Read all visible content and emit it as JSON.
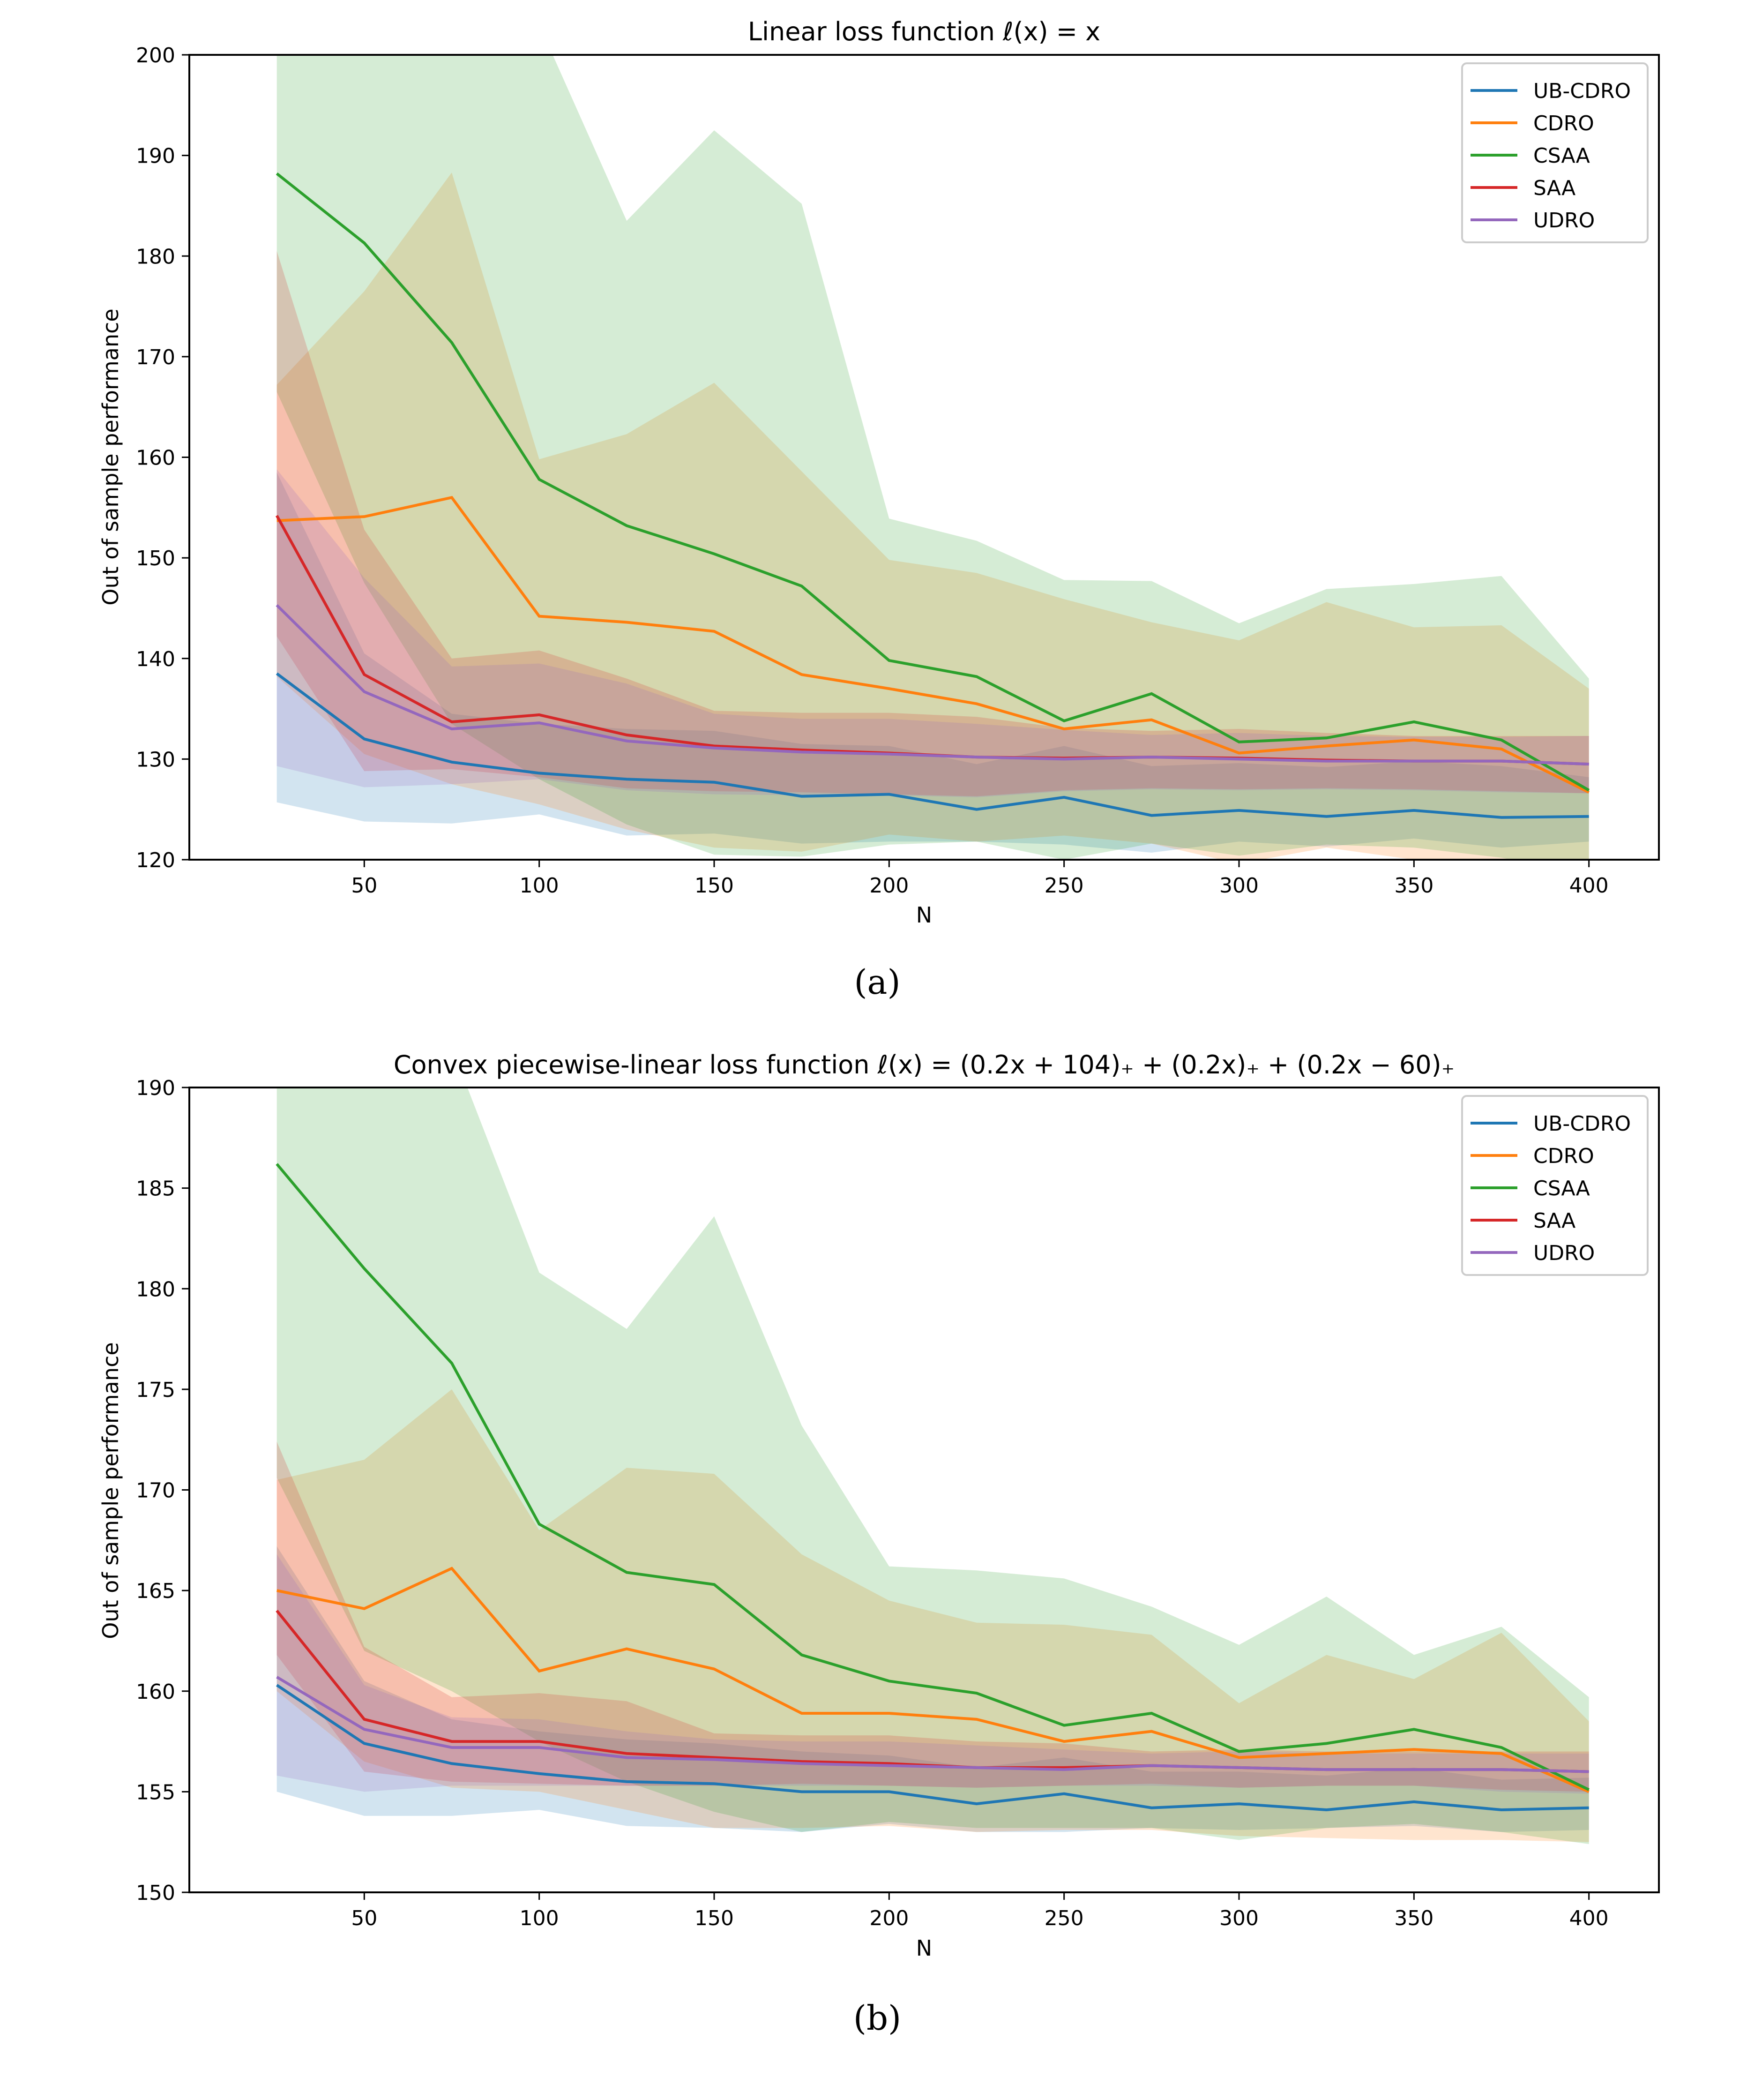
{
  "figure": {
    "captions": [
      "(a)",
      "(b)"
    ]
  },
  "colors": {
    "UB-CDRO": "#1f77b4",
    "CDRO": "#ff7f0e",
    "CSAA": "#2ca02c",
    "SAA": "#d62728",
    "UDRO": "#9467bd"
  },
  "chart_data": [
    {
      "type": "line",
      "title": "Linear loss function ℓ(x) = x",
      "xlabel": "N",
      "ylabel": "Out of sample performance",
      "xlim": [
        0,
        420
      ],
      "ylim": [
        120,
        200
      ],
      "xticks": [
        50,
        100,
        150,
        200,
        250,
        300,
        350,
        400
      ],
      "yticks": [
        120,
        130,
        140,
        150,
        160,
        170,
        180,
        190,
        200
      ],
      "grid": false,
      "legend_position": "top-right",
      "x": [
        25,
        50,
        75,
        100,
        125,
        150,
        175,
        200,
        225,
        250,
        275,
        300,
        325,
        350,
        375,
        400
      ],
      "series": [
        {
          "name": "UB-CDRO",
          "values": [
            138.5,
            132.0,
            129.7,
            128.6,
            128.0,
            127.7,
            126.3,
            126.5,
            125.0,
            126.2,
            124.4,
            124.9,
            124.3,
            124.9,
            124.2,
            124.3
          ],
          "band_upper": [
            158.5,
            140.5,
            134.5,
            133.5,
            133.0,
            132.8,
            131.5,
            131.3,
            129.5,
            131.3,
            129.3,
            129.6,
            129.2,
            129.8,
            129.3,
            128.2
          ],
          "band_lower": [
            125.7,
            123.8,
            123.6,
            124.5,
            122.4,
            122.6,
            121.6,
            121.8,
            121.8,
            121.5,
            120.7,
            121.8,
            121.3,
            122.1,
            121.2,
            121.8
          ]
        },
        {
          "name": "CDRO",
          "values": [
            153.7,
            154.1,
            156.0,
            144.2,
            143.6,
            142.7,
            138.4,
            137.0,
            135.5,
            133.0,
            133.9,
            130.6,
            131.3,
            131.9,
            131.0,
            126.7
          ],
          "band_upper": [
            167.2,
            176.5,
            188.3,
            159.8,
            162.3,
            167.4,
            158.6,
            149.8,
            148.5,
            145.9,
            143.6,
            141.8,
            145.6,
            143.1,
            143.3,
            137.0
          ],
          "band_lower": [
            138.2,
            130.5,
            127.5,
            125.5,
            123.0,
            121.2,
            120.8,
            122.5,
            121.8,
            122.4,
            121.6,
            119.6,
            121.2,
            120.0,
            119.5,
            119.0
          ]
        },
        {
          "name": "CSAA",
          "values": [
            188.2,
            181.3,
            171.4,
            157.8,
            153.2,
            150.4,
            147.2,
            139.8,
            138.2,
            133.8,
            136.5,
            131.7,
            132.1,
            133.7,
            131.9,
            126.9
          ],
          "band_upper": [
            215.0,
            213.0,
            215.0,
            203.0,
            183.5,
            192.5,
            185.2,
            153.9,
            151.7,
            147.8,
            147.7,
            143.5,
            146.9,
            147.4,
            148.2,
            138.0
          ],
          "band_lower": [
            166.5,
            147.5,
            133.5,
            128.0,
            123.5,
            120.5,
            120.3,
            121.5,
            121.8,
            120.0,
            121.6,
            120.4,
            121.5,
            121.2,
            120.2,
            118.5
          ]
        },
        {
          "name": "SAA",
          "values": [
            154.2,
            138.4,
            133.7,
            134.4,
            132.4,
            131.3,
            130.9,
            130.6,
            130.2,
            130.1,
            130.2,
            130.1,
            129.9,
            129.8,
            129.8,
            129.5
          ],
          "band_upper": [
            180.5,
            152.8,
            140.0,
            140.8,
            138.0,
            134.8,
            134.6,
            134.6,
            134.2,
            133.1,
            132.8,
            133.0,
            132.6,
            132.3,
            132.3,
            132.3
          ],
          "band_lower": [
            142.2,
            128.8,
            129.0,
            128.2,
            127.1,
            126.8,
            126.7,
            126.5,
            126.3,
            126.9,
            127.1,
            127.0,
            127.1,
            127.0,
            126.8,
            126.6
          ]
        },
        {
          "name": "UDRO",
          "values": [
            145.3,
            136.7,
            133.0,
            133.6,
            131.8,
            131.1,
            130.7,
            130.5,
            130.2,
            130.0,
            130.2,
            130.0,
            129.8,
            129.8,
            129.8,
            129.5
          ],
          "band_upper": [
            158.8,
            148.0,
            139.2,
            139.5,
            137.5,
            134.5,
            134.0,
            134.0,
            133.5,
            132.9,
            132.4,
            132.6,
            132.3,
            132.2,
            132.2,
            132.3
          ],
          "band_lower": [
            129.3,
            127.2,
            127.5,
            128.0,
            126.9,
            126.5,
            126.4,
            126.4,
            126.2,
            126.8,
            127.0,
            126.9,
            127.0,
            126.9,
            126.7,
            126.6
          ]
        }
      ]
    },
    {
      "type": "line",
      "title": "Convex piecewise-linear loss function ℓ(x) = (0.2x + 104)₊ + (0.2x)₊ + (0.2x − 60)₊",
      "xlabel": "N",
      "ylabel": "Out of sample performance",
      "xlim": [
        0,
        420
      ],
      "ylim": [
        150,
        190
      ],
      "xticks": [
        50,
        100,
        150,
        200,
        250,
        300,
        350,
        400
      ],
      "yticks": [
        150,
        155,
        160,
        165,
        170,
        175,
        180,
        185,
        190
      ],
      "grid": false,
      "legend_position": "top-right",
      "x": [
        25,
        50,
        75,
        100,
        125,
        150,
        175,
        200,
        225,
        250,
        275,
        300,
        325,
        350,
        375,
        400
      ],
      "series": [
        {
          "name": "UB-CDRO",
          "values": [
            160.3,
            157.4,
            156.4,
            155.9,
            155.5,
            155.4,
            155.0,
            155.0,
            154.4,
            154.9,
            154.2,
            154.4,
            154.1,
            154.5,
            154.1,
            154.2
          ],
          "band_upper": [
            167.2,
            160.5,
            158.6,
            158.0,
            157.6,
            157.4,
            157.0,
            156.8,
            156.2,
            156.7,
            156.0,
            156.0,
            155.8,
            156.2,
            155.6,
            155.7
          ],
          "band_lower": [
            155.0,
            153.8,
            153.8,
            154.1,
            153.3,
            153.2,
            153.0,
            153.4,
            153.0,
            153.0,
            153.2,
            153.1,
            153.2,
            153.3,
            153.0,
            153.1
          ]
        },
        {
          "name": "CDRO",
          "values": [
            165.0,
            164.1,
            166.1,
            161.0,
            162.1,
            161.1,
            158.9,
            158.9,
            158.6,
            157.5,
            158.0,
            156.7,
            156.9,
            157.1,
            156.9,
            155.0
          ],
          "band_upper": [
            170.5,
            171.5,
            175.0,
            168.0,
            171.1,
            170.8,
            166.8,
            164.5,
            163.4,
            163.3,
            162.8,
            159.4,
            161.8,
            160.6,
            162.9,
            158.5
          ],
          "band_lower": [
            160.0,
            156.5,
            155.2,
            155.0,
            154.1,
            153.2,
            153.2,
            153.3,
            153.0,
            153.1,
            153.1,
            152.8,
            152.7,
            152.6,
            152.6,
            152.5
          ]
        },
        {
          "name": "CSAA",
          "values": [
            186.2,
            181.0,
            176.3,
            168.3,
            165.9,
            165.3,
            161.8,
            160.5,
            159.9,
            158.3,
            158.9,
            157.0,
            157.4,
            158.1,
            157.2,
            155.1
          ],
          "band_upper": [
            200.0,
            200.0,
            192.0,
            180.8,
            178.0,
            183.6,
            173.2,
            166.2,
            166.0,
            165.6,
            164.2,
            162.3,
            164.7,
            161.8,
            163.2,
            159.7
          ],
          "band_lower": [
            170.6,
            162.0,
            160.0,
            157.5,
            155.5,
            154.0,
            153.0,
            153.5,
            153.2,
            153.2,
            153.2,
            152.6,
            153.2,
            153.4,
            153.0,
            152.4
          ]
        },
        {
          "name": "SAA",
          "values": [
            164.0,
            158.6,
            157.5,
            157.5,
            156.9,
            156.7,
            156.5,
            156.4,
            156.2,
            156.2,
            156.3,
            156.2,
            156.1,
            156.1,
            156.1,
            156.0
          ],
          "band_upper": [
            172.4,
            162.2,
            159.7,
            159.9,
            159.5,
            157.9,
            157.8,
            157.8,
            157.5,
            157.4,
            157.0,
            157.1,
            157.0,
            157.0,
            157.0,
            157.0
          ],
          "band_lower": [
            161.8,
            156.0,
            155.5,
            155.4,
            155.3,
            155.3,
            155.4,
            155.3,
            155.2,
            155.3,
            155.4,
            155.2,
            155.3,
            155.3,
            155.1,
            155.0
          ]
        },
        {
          "name": "UDRO",
          "values": [
            160.7,
            158.1,
            157.2,
            157.2,
            156.7,
            156.6,
            156.4,
            156.3,
            156.2,
            156.1,
            156.3,
            156.2,
            156.1,
            156.1,
            156.1,
            156.0
          ],
          "band_upper": [
            166.8,
            160.3,
            158.7,
            158.6,
            158.0,
            157.6,
            157.5,
            157.5,
            157.3,
            157.1,
            156.9,
            157.0,
            156.9,
            156.9,
            156.9,
            156.9
          ],
          "band_lower": [
            155.8,
            155.0,
            155.3,
            155.3,
            155.3,
            155.3,
            155.3,
            155.3,
            155.2,
            155.3,
            155.3,
            155.2,
            155.3,
            155.3,
            155.0,
            154.9
          ]
        }
      ]
    }
  ]
}
